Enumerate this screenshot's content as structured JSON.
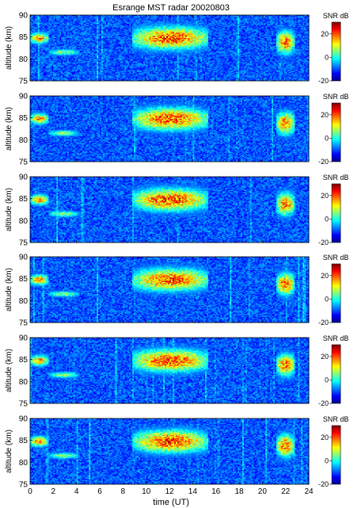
{
  "figure": {
    "title": "Esrange MST radar 20020803",
    "xlabel": "time (UT)",
    "ylabel": "altitude (km)",
    "colorbar_label": "SNR dB",
    "xticks": [
      "0",
      "2",
      "4",
      "6",
      "8",
      "10",
      "12",
      "14",
      "16",
      "18",
      "20",
      "22",
      "24"
    ],
    "yticks": [
      "75",
      "80",
      "85",
      "90"
    ],
    "cbar_ticks": [
      "20",
      "0",
      "-20"
    ]
  },
  "chart_data": {
    "type": "heatmap",
    "title": "Esrange MST radar 20020803",
    "xlabel": "time (UT)",
    "ylabel": "altitude (km)",
    "xlim": [
      0,
      24
    ],
    "ylim": [
      75,
      90
    ],
    "color_scale": {
      "label": "SNR dB",
      "range": [
        -20,
        30
      ],
      "ticks": [
        -20,
        0,
        20
      ],
      "colormap": "jet"
    },
    "panel_count": 6,
    "echo_layers": [
      {
        "t_start": 0.0,
        "t_end": 1.6,
        "alt_top": 86.5,
        "alt_bottom": 83.0,
        "peak_snr_db": 25
      },
      {
        "t_start": 1.6,
        "t_end": 4.2,
        "alt_top": 82.5,
        "alt_bottom": 80.5,
        "peak_snr_db": 12
      },
      {
        "t_start": 8.8,
        "t_end": 15.4,
        "alt_top": 88.5,
        "alt_bottom": 81.0,
        "peak_snr_db": 30
      },
      {
        "t_start": 21.2,
        "t_end": 22.8,
        "alt_top": 87.5,
        "alt_bottom": 80.0,
        "peak_snr_db": 28
      }
    ]
  }
}
